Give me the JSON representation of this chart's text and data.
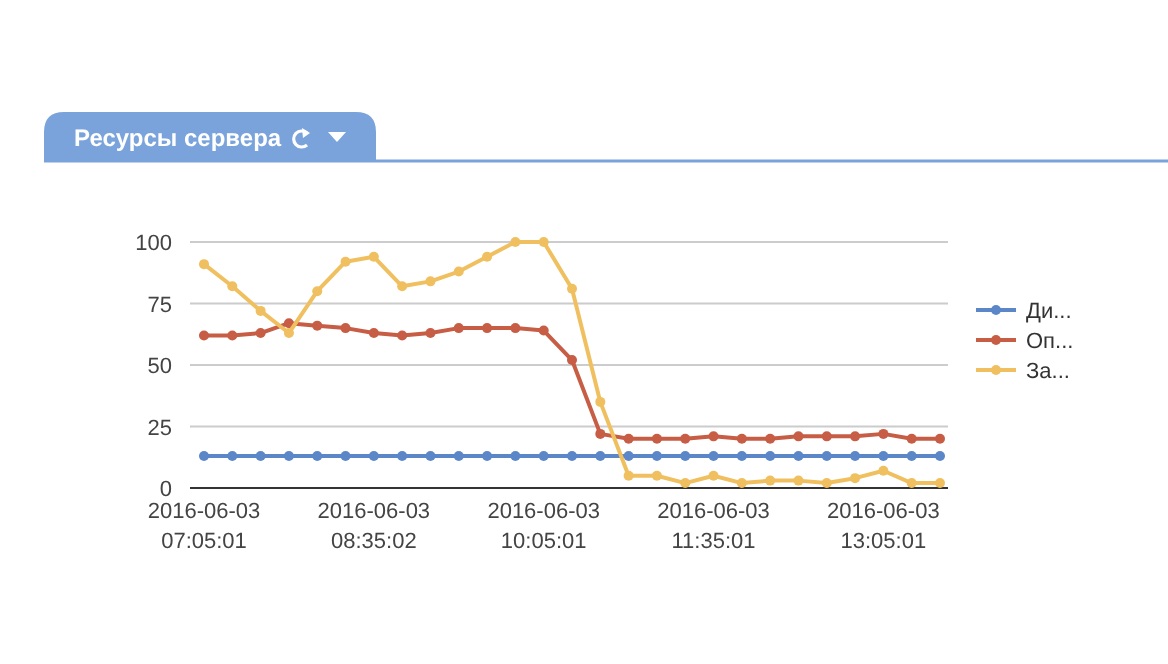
{
  "chart_data": {
    "type": "line",
    "title": "Ресурсы сервера",
    "categories": [
      "2016-06-03 07:05:01",
      null,
      null,
      null,
      null,
      null,
      "2016-06-03 08:35:02",
      null,
      null,
      null,
      null,
      null,
      "2016-06-03 10:05:01",
      null,
      null,
      null,
      null,
      null,
      "2016-06-03 11:35:01",
      null,
      null,
      null,
      null,
      null,
      "2016-06-03 13:05:01",
      null,
      null
    ],
    "series": [
      {
        "name": "Ди...",
        "color": "#5b87c9",
        "values": [
          13,
          13,
          13,
          13,
          13,
          13,
          13,
          13,
          13,
          13,
          13,
          13,
          13,
          13,
          13,
          13,
          13,
          13,
          13,
          13,
          13,
          13,
          13,
          13,
          13,
          13,
          13
        ]
      },
      {
        "name": "Оп...",
        "color": "#c75d45",
        "values": [
          62,
          62,
          63,
          67,
          66,
          65,
          63,
          62,
          63,
          65,
          65,
          65,
          64,
          52,
          22,
          20,
          20,
          20,
          21,
          20,
          20,
          21,
          21,
          21,
          22,
          20,
          20
        ]
      },
      {
        "name": "За...",
        "color": "#f0c060",
        "values": [
          91,
          82,
          72,
          63,
          80,
          92,
          94,
          82,
          84,
          88,
          94,
          100,
          100,
          81,
          35,
          5,
          5,
          2,
          5,
          2,
          3,
          3,
          2,
          4,
          7,
          2,
          2
        ]
      }
    ],
    "ylim": [
      0,
      100
    ],
    "yticks": [
      0,
      25,
      50,
      75,
      100
    ],
    "grid": "y",
    "legend": "right",
    "marker": "circle",
    "line_style": "solid"
  }
}
